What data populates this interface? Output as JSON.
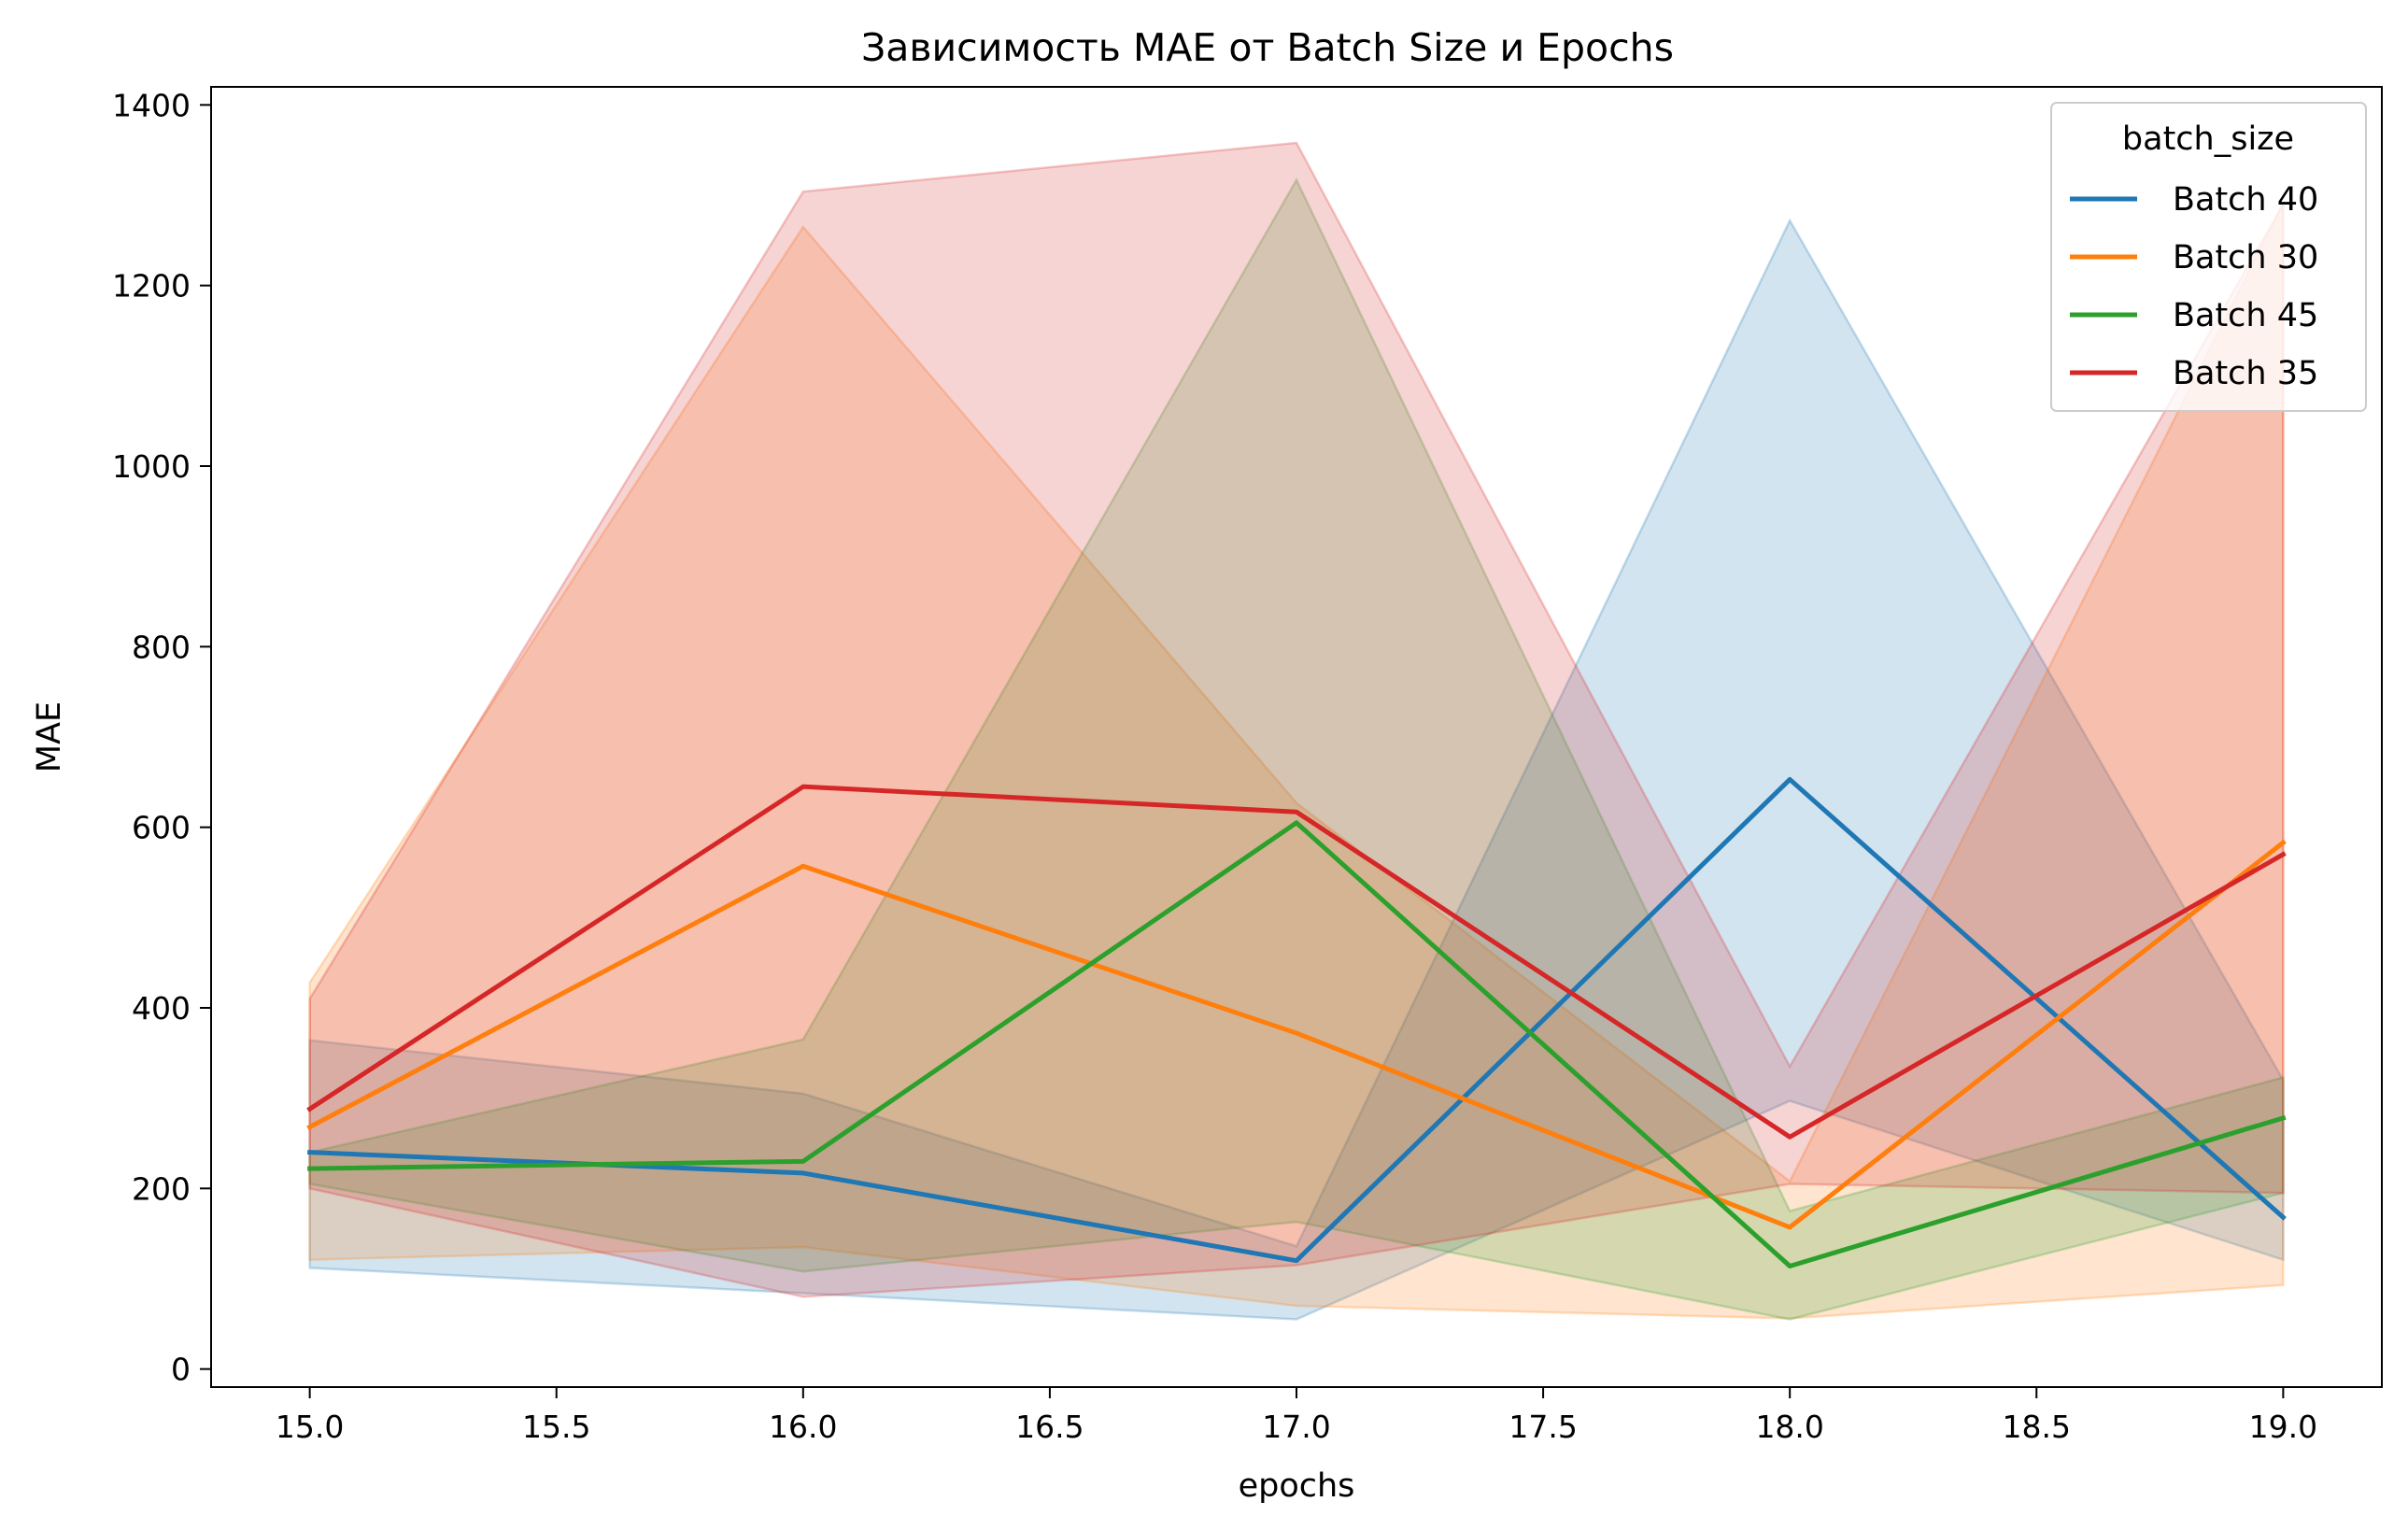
{
  "chart_data": {
    "type": "line",
    "title": "Зависимость MAE от Batch Size и Epochs",
    "xlabel": "epochs",
    "ylabel": "MAE",
    "x": [
      15,
      16,
      17,
      18,
      19
    ],
    "xlim": [
      14.8,
      19.2
    ],
    "ylim": [
      -20,
      1420
    ],
    "xticks": [
      15.0,
      15.5,
      16.0,
      16.5,
      17.0,
      17.5,
      18.0,
      18.5,
      19.0
    ],
    "xtick_labels": [
      "15.0",
      "15.5",
      "16.0",
      "16.5",
      "17.0",
      "17.5",
      "18.0",
      "18.5",
      "19.0"
    ],
    "yticks": [
      0,
      200,
      400,
      600,
      800,
      1000,
      1200,
      1400
    ],
    "ytick_labels": [
      "0",
      "200",
      "400",
      "600",
      "800",
      "1000",
      "1200",
      "1400"
    ],
    "grid": false,
    "legend": {
      "title": "batch_size",
      "placement": "top-right"
    },
    "series": [
      {
        "name": "Batch 40",
        "color": "#1f77b4",
        "values": [
          240,
          217,
          120,
          653,
          168
        ],
        "ci_low": [
          112,
          84,
          55,
          297,
          121
        ],
        "ci_high": [
          364,
          305,
          136,
          1272,
          320
        ]
      },
      {
        "name": "Batch 30",
        "color": "#ff7f0e",
        "values": [
          268,
          557,
          372,
          157,
          583
        ],
        "ci_low": [
          121,
          135,
          70,
          56,
          93
        ],
        "ci_high": [
          428,
          1265,
          627,
          208,
          1291
        ]
      },
      {
        "name": "Batch 45",
        "color": "#2ca02c",
        "values": [
          222,
          230,
          605,
          114,
          278
        ],
        "ci_low": [
          205,
          108,
          163,
          55,
          195
        ],
        "ci_high": [
          240,
          365,
          1317,
          175,
          323
        ]
      },
      {
        "name": "Batch 35",
        "color": "#d62728",
        "values": [
          288,
          645,
          617,
          257,
          570
        ],
        "ci_low": [
          200,
          80,
          115,
          205,
          195
        ],
        "ci_high": [
          410,
          1304,
          1358,
          335,
          1290
        ]
      }
    ]
  }
}
